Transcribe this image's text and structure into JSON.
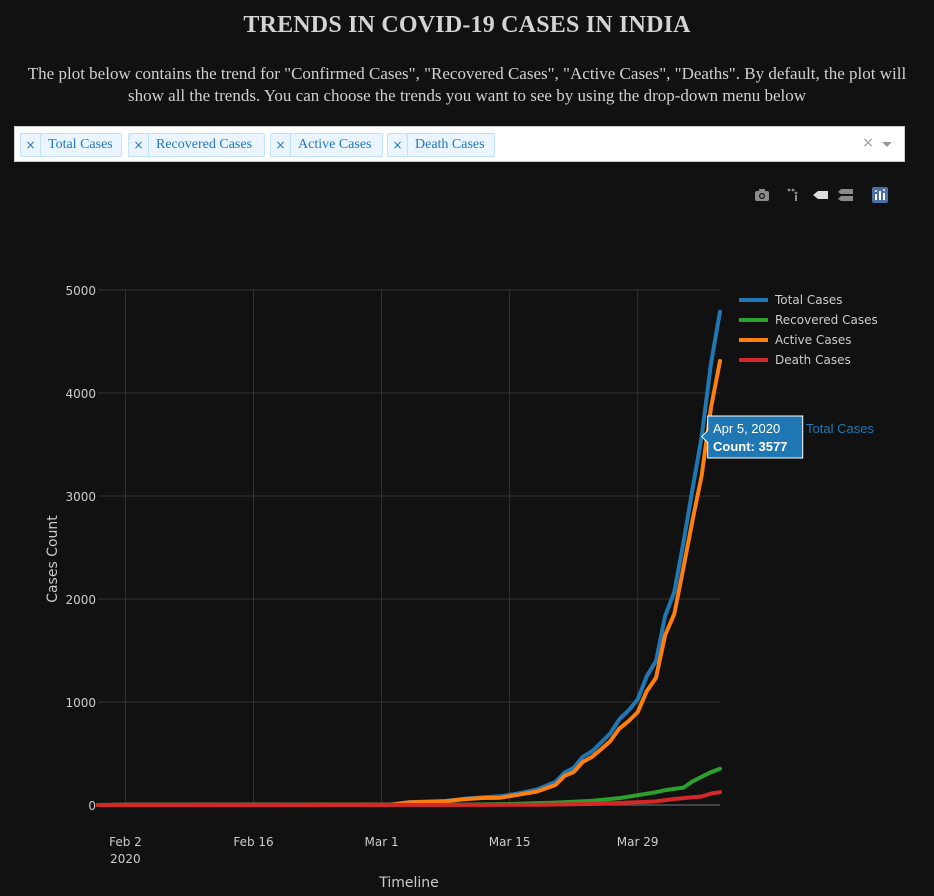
{
  "page": {
    "title": "TRENDS IN COVID-19 CASES IN INDIA",
    "description": "The plot below contains the trend for \"Confirmed Cases\", \"Recovered Cases\", \"Active Cases\", \"Deaths\". By default, the plot will show all the trends. You can choose the trends you want to see by using the drop-down menu below"
  },
  "dropdown": {
    "selected": [
      "Total Cases",
      "Recovered Cases",
      "Active Cases",
      "Death Cases"
    ],
    "remove_glyph": "×",
    "clear_glyph": "×"
  },
  "modebar": {
    "icons": [
      "camera-icon",
      "zoom-icon",
      "hover-closest-icon",
      "hover-compare-icon",
      "plotly-logo-icon"
    ]
  },
  "hover": {
    "date": "Apr 5, 2020",
    "count_text": "Count: 3577",
    "series": "Total Cases",
    "x": "2020-04-05",
    "y": 3577
  },
  "chart_data": {
    "type": "line",
    "xlabel": "Timeline",
    "ylabel": "Cases Count",
    "xlim": [
      "2020-01-30",
      "2020-04-07"
    ],
    "ylim": [
      0,
      5000
    ],
    "yticks": [
      0,
      1000,
      2000,
      3000,
      4000,
      5000
    ],
    "xticks": [
      {
        "date": "2020-02-02",
        "label": "Feb 2",
        "sublabel": "2020"
      },
      {
        "date": "2020-02-16",
        "label": "Feb 16",
        "sublabel": ""
      },
      {
        "date": "2020-03-01",
        "label": "Mar 1",
        "sublabel": ""
      },
      {
        "date": "2020-03-15",
        "label": "Mar 15",
        "sublabel": ""
      },
      {
        "date": "2020-03-29",
        "label": "Mar 29",
        "sublabel": ""
      }
    ],
    "grid": true,
    "legend_position": "top-right",
    "background": "#111111",
    "series": [
      {
        "name": "Total Cases",
        "color": "#1f77b4",
        "points": [
          [
            "2020-01-30",
            0
          ],
          [
            "2020-02-02",
            3
          ],
          [
            "2020-03-02",
            5
          ],
          [
            "2020-03-04",
            28
          ],
          [
            "2020-03-08",
            39
          ],
          [
            "2020-03-10",
            60
          ],
          [
            "2020-03-12",
            74
          ],
          [
            "2020-03-14",
            84
          ],
          [
            "2020-03-16",
            114
          ],
          [
            "2020-03-18",
            151
          ],
          [
            "2020-03-20",
            223
          ],
          [
            "2020-03-21",
            315
          ],
          [
            "2020-03-22",
            360
          ],
          [
            "2020-03-23",
            468
          ],
          [
            "2020-03-24",
            520
          ],
          [
            "2020-03-25",
            606
          ],
          [
            "2020-03-26",
            694
          ],
          [
            "2020-03-27",
            833
          ],
          [
            "2020-03-28",
            918
          ],
          [
            "2020-03-29",
            1024
          ],
          [
            "2020-03-30",
            1251
          ],
          [
            "2020-03-31",
            1397
          ],
          [
            "2020-04-01",
            1834
          ],
          [
            "2020-04-02",
            2069
          ],
          [
            "2020-04-03",
            2547
          ],
          [
            "2020-04-04",
            3072
          ],
          [
            "2020-04-05",
            3577
          ],
          [
            "2020-04-06",
            4281
          ],
          [
            "2020-04-07",
            4789
          ]
        ]
      },
      {
        "name": "Recovered Cases",
        "color": "#2ca02c",
        "points": [
          [
            "2020-01-30",
            0
          ],
          [
            "2020-03-10",
            4
          ],
          [
            "2020-03-15",
            10
          ],
          [
            "2020-03-20",
            23
          ],
          [
            "2020-03-24",
            40
          ],
          [
            "2020-03-27",
            67
          ],
          [
            "2020-03-29",
            95
          ],
          [
            "2020-03-31",
            124
          ],
          [
            "2020-04-01",
            144
          ],
          [
            "2020-04-02",
            156
          ],
          [
            "2020-04-03",
            169
          ],
          [
            "2020-04-04",
            229
          ],
          [
            "2020-04-05",
            274
          ],
          [
            "2020-04-06",
            318
          ],
          [
            "2020-04-07",
            352
          ]
        ]
      },
      {
        "name": "Active Cases",
        "color": "#ff7f0e",
        "points": [
          [
            "2020-01-30",
            0
          ],
          [
            "2020-02-02",
            3
          ],
          [
            "2020-03-02",
            2
          ],
          [
            "2020-03-04",
            25
          ],
          [
            "2020-03-08",
            36
          ],
          [
            "2020-03-10",
            55
          ],
          [
            "2020-03-12",
            68
          ],
          [
            "2020-03-14",
            71
          ],
          [
            "2020-03-16",
            100
          ],
          [
            "2020-03-18",
            131
          ],
          [
            "2020-03-20",
            194
          ],
          [
            "2020-03-21",
            283
          ],
          [
            "2020-03-22",
            318
          ],
          [
            "2020-03-23",
            418
          ],
          [
            "2020-03-24",
            466
          ],
          [
            "2020-03-25",
            541
          ],
          [
            "2020-03-26",
            619
          ],
          [
            "2020-03-27",
            742
          ],
          [
            "2020-03-28",
            814
          ],
          [
            "2020-03-29",
            901
          ],
          [
            "2020-03-30",
            1106
          ],
          [
            "2020-03-31",
            1235
          ],
          [
            "2020-04-01",
            1649
          ],
          [
            "2020-04-02",
            1855
          ],
          [
            "2020-04-03",
            2302
          ],
          [
            "2020-04-04",
            2767
          ],
          [
            "2020-04-05",
            3200
          ],
          [
            "2020-04-06",
            3851
          ],
          [
            "2020-04-07",
            4311
          ]
        ]
      },
      {
        "name": "Death Cases",
        "color": "#d62728",
        "points": [
          [
            "2020-01-30",
            0
          ],
          [
            "2020-03-12",
            1
          ],
          [
            "2020-03-18",
            3
          ],
          [
            "2020-03-24",
            10
          ],
          [
            "2020-03-29",
            27
          ],
          [
            "2020-03-31",
            35
          ],
          [
            "2020-04-02",
            58
          ],
          [
            "2020-04-04",
            75
          ],
          [
            "2020-04-05",
            83
          ],
          [
            "2020-04-06",
            111
          ],
          [
            "2020-04-07",
            124
          ]
        ]
      }
    ]
  }
}
